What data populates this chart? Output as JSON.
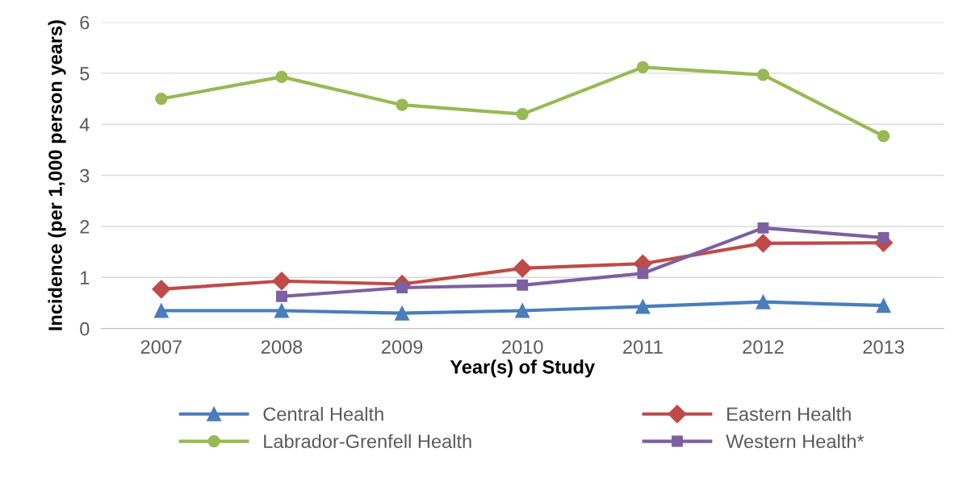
{
  "chart_data": {
    "type": "line",
    "xlabel": "Year(s) of Study",
    "ylabel": "Incidence (per 1,000 person years)",
    "categories": [
      "2007",
      "2008",
      "2009",
      "2010",
      "2011",
      "2012",
      "2013"
    ],
    "series": [
      {
        "name": "Central Health",
        "color": "#4a7ebb",
        "marker": "triangle",
        "values": [
          0.35,
          0.35,
          0.3,
          0.35,
          0.43,
          0.52,
          0.45
        ]
      },
      {
        "name": "Eastern Health",
        "color": "#be4b48",
        "marker": "diamond",
        "values": [
          0.77,
          0.93,
          0.87,
          1.18,
          1.27,
          1.67,
          1.68
        ]
      },
      {
        "name": "Labrador-Grenfell Health",
        "color": "#98b954",
        "marker": "circle",
        "values": [
          4.5,
          4.93,
          4.38,
          4.2,
          5.12,
          4.97,
          3.77
        ]
      },
      {
        "name": "Western Health*",
        "color": "#7d60a0",
        "marker": "square",
        "values": [
          null,
          0.63,
          0.8,
          0.85,
          1.08,
          1.97,
          1.78
        ]
      }
    ],
    "ylim": [
      0,
      6
    ],
    "yticks": [
      0,
      1,
      2,
      3,
      4,
      5,
      6
    ],
    "grid": "y",
    "legend": "bottom"
  }
}
